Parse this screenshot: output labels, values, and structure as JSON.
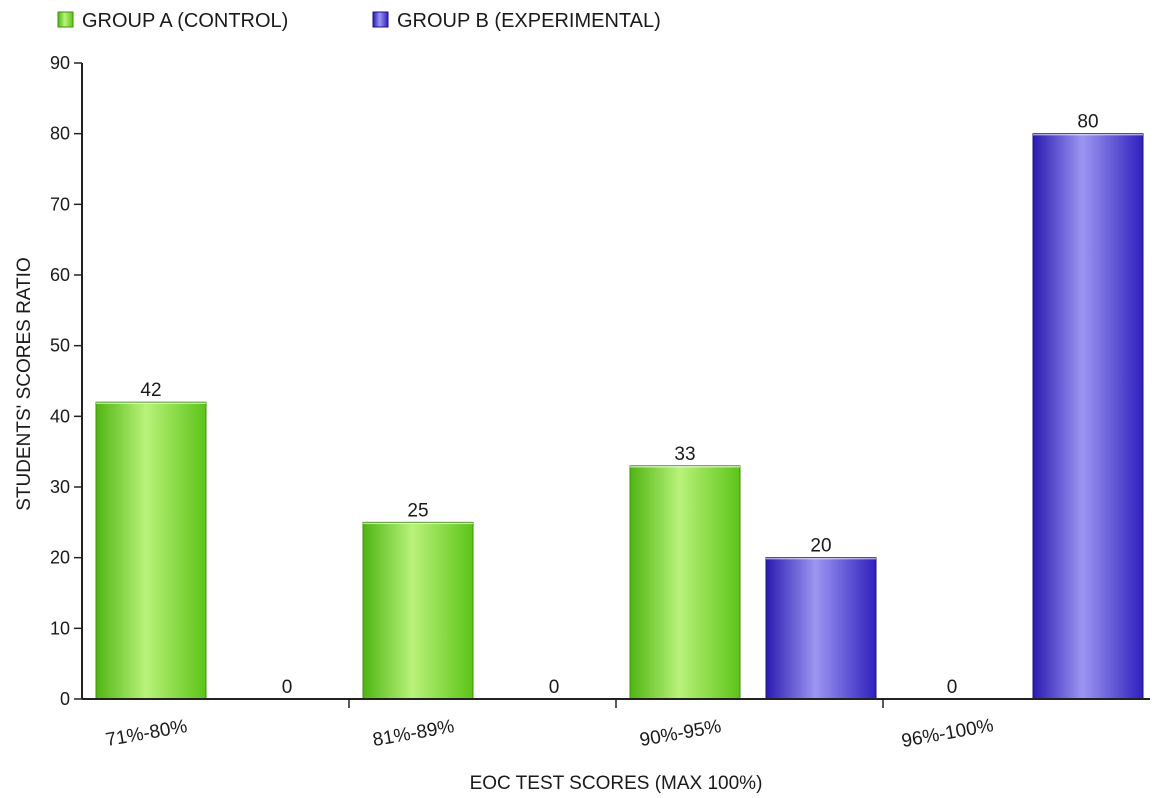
{
  "chart_data": {
    "type": "bar",
    "title": "",
    "xlabel": "EOC TEST SCORES (MAX 100%)",
    "ylabel": "STUDENTS' SCORES RATIO",
    "categories": [
      "71%-80%",
      "81%-89%",
      "90%-95%",
      "96%-100%"
    ],
    "series": [
      {
        "name": "GROUP A (CONTROL)",
        "values": [
          42,
          25,
          33,
          0
        ],
        "color": "#6cd61f",
        "highlight": "#c4f58e"
      },
      {
        "name": "GROUP B (EXPERIMENTAL)",
        "values": [
          0,
          0,
          20,
          80
        ],
        "color": "#3325c4",
        "highlight": "#a9a4f5"
      }
    ],
    "ylim": [
      0,
      90
    ],
    "yticks": [
      0,
      10,
      20,
      30,
      40,
      50,
      60,
      70,
      80,
      90
    ],
    "grid": false,
    "legend_position": "top-left"
  }
}
